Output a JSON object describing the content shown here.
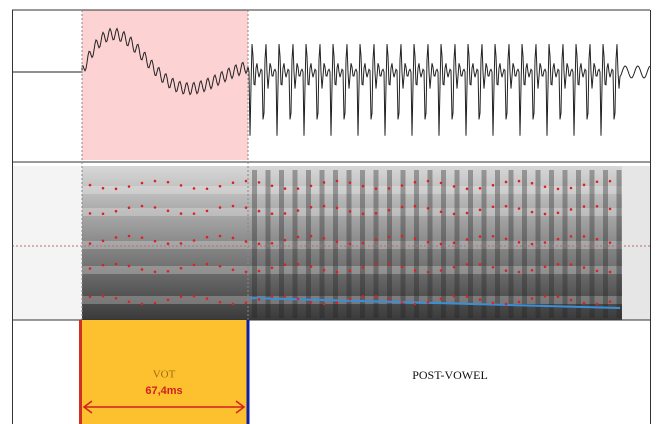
{
  "tier": {
    "intervals": [
      {
        "label": "VOT",
        "duration": "67,4ms"
      },
      {
        "label": "POST-VOWEL"
      }
    ]
  }
}
